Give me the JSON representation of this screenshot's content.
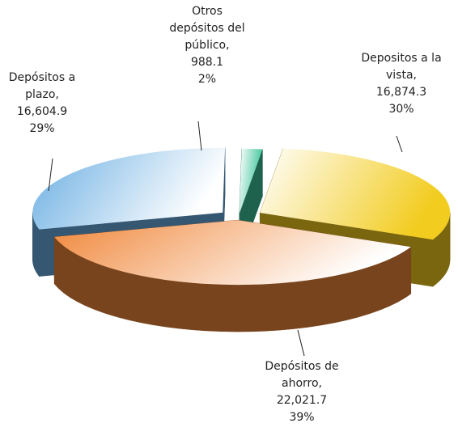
{
  "chart_data": {
    "type": "pie3d",
    "categories": [
      "Depositos a la vista,",
      "Depósitos de ahorro,",
      "Depósitos a plazo,",
      "Otros depósitos del público,"
    ],
    "values": [
      16874.3,
      22021.7,
      16604.9,
      988.1
    ],
    "value_labels": [
      "16,874.3",
      "22,021.7",
      "16,604.9",
      "988.1"
    ],
    "percentages": [
      30,
      39,
      29,
      2
    ],
    "percentage_labels": [
      "30%",
      "39%",
      "29%",
      "2%"
    ],
    "colors": [
      "#f2cc1e",
      "#f0873a",
      "#6aaee2",
      "#3cc49a"
    ]
  }
}
